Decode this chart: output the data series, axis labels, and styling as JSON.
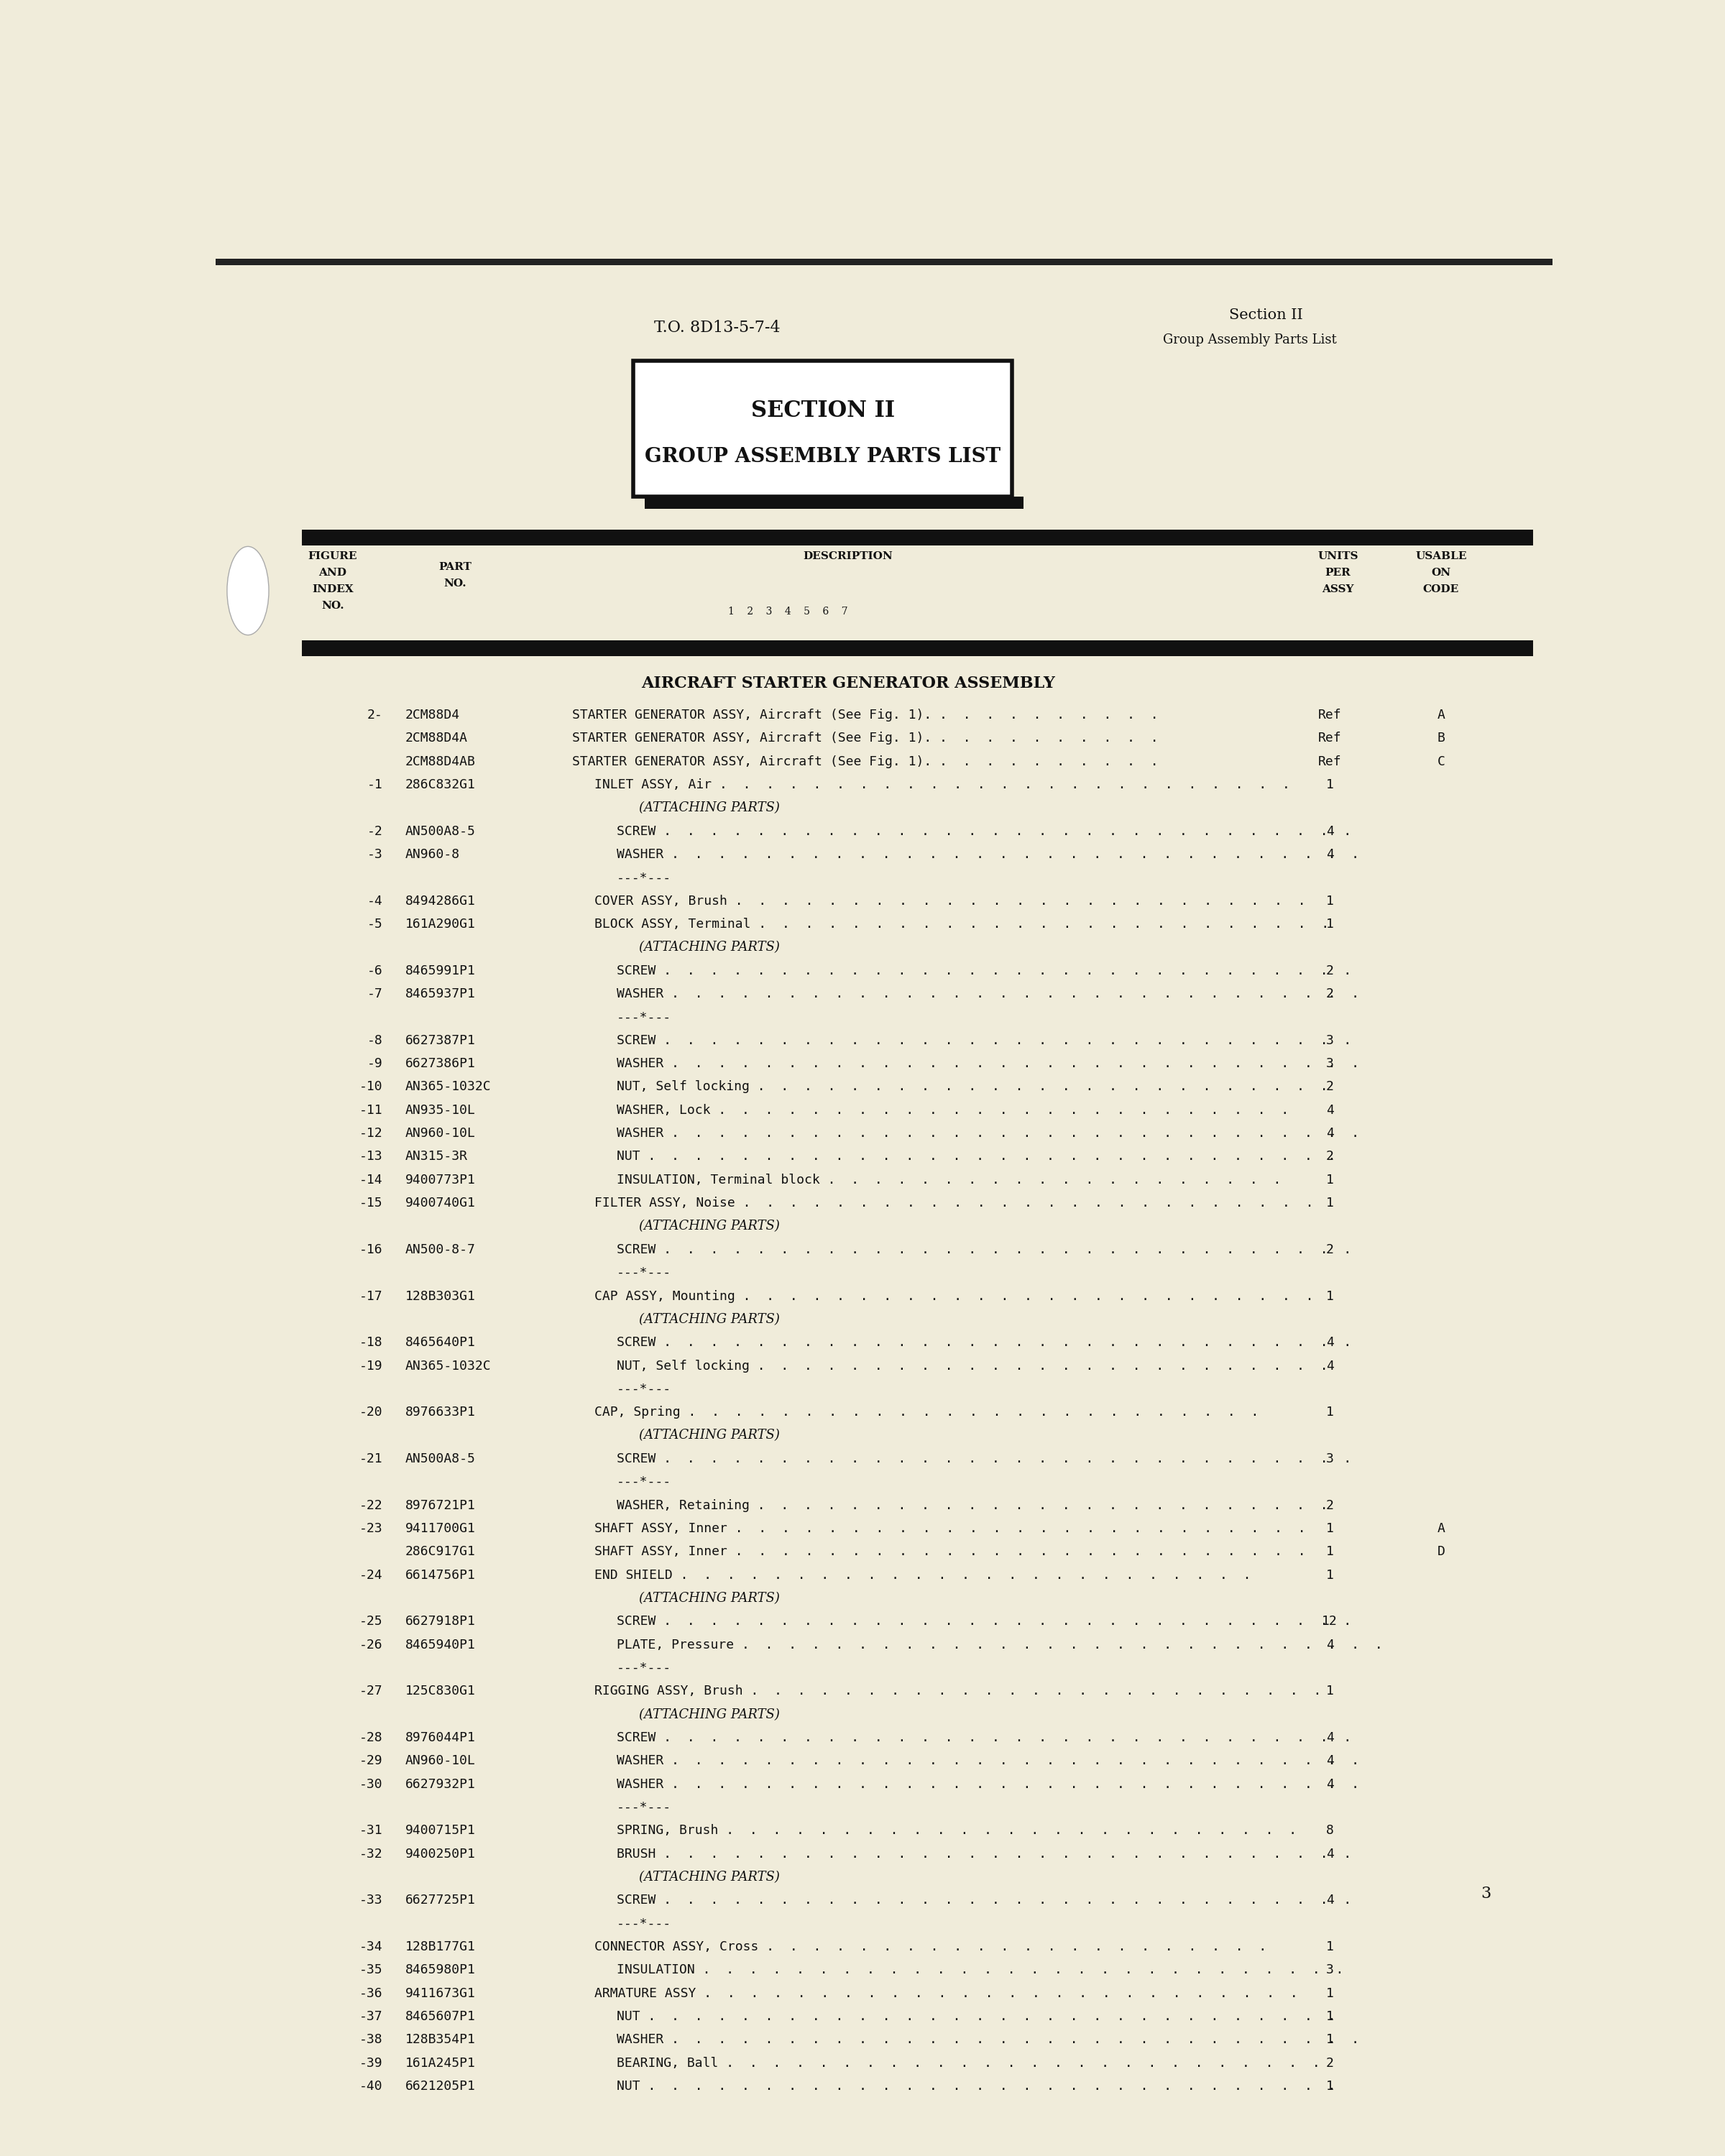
{
  "bg_color": "#f0ecda",
  "text_color": "#111111",
  "header_left": "T.O. 8D13-5-7-4",
  "header_right_line1": "Section II",
  "header_right_line2": "Group Assembly Parts List",
  "section_box_line1": "SECTION II",
  "section_box_line2": "GROUP ASSEMBLY PARTS LIST",
  "section_title": "AIRCRAFT STARTER GENERATOR ASSEMBLY",
  "page_number": "3",
  "rows": [
    {
      "fig": "2-",
      "part": "2CM88D4",
      "indent": 0,
      "desc": "STARTER GENERATOR ASSY, Aircraft (See Fig. 1).",
      "dots": 10,
      "units": "Ref",
      "code": "A"
    },
    {
      "fig": "",
      "part": "2CM88D4A",
      "indent": 0,
      "desc": "STARTER GENERATOR ASSY, Aircraft (See Fig. 1).",
      "dots": 10,
      "units": "Ref",
      "code": "B"
    },
    {
      "fig": "",
      "part": "2CM88D4AB",
      "indent": 0,
      "desc": "STARTER GENERATOR ASSY, Aircraft (See Fig. 1).",
      "dots": 10,
      "units": "Ref",
      "code": "C"
    },
    {
      "fig": "-1",
      "part": "286C832G1",
      "indent": 1,
      "desc": "INLET ASSY, Air",
      "dots": 25,
      "units": "1",
      "code": ""
    },
    {
      "fig": "",
      "part": "",
      "indent": 2,
      "desc": "(ATTACHING PARTS)",
      "dots": 0,
      "units": "",
      "code": ""
    },
    {
      "fig": "-2",
      "part": "AN500A8-5",
      "indent": 2,
      "desc": "SCREW",
      "dots": 30,
      "units": "4",
      "code": ""
    },
    {
      "fig": "-3",
      "part": "AN960-8",
      "indent": 2,
      "desc": "WASHER",
      "dots": 30,
      "units": "4",
      "code": ""
    },
    {
      "fig": "",
      "part": "",
      "indent": 0,
      "desc": "---*---",
      "dots": 0,
      "units": "",
      "code": ""
    },
    {
      "fig": "-4",
      "part": "8494286G1",
      "indent": 1,
      "desc": "COVER ASSY, Brush",
      "dots": 25,
      "units": "1",
      "code": ""
    },
    {
      "fig": "-5",
      "part": "161A290G1",
      "indent": 1,
      "desc": "BLOCK ASSY, Terminal",
      "dots": 25,
      "units": "1",
      "code": ""
    },
    {
      "fig": "",
      "part": "",
      "indent": 2,
      "desc": "(ATTACHING PARTS)",
      "dots": 0,
      "units": "",
      "code": ""
    },
    {
      "fig": "-6",
      "part": "8465991P1",
      "indent": 2,
      "desc": "SCREW",
      "dots": 30,
      "units": "2",
      "code": ""
    },
    {
      "fig": "-7",
      "part": "8465937P1",
      "indent": 2,
      "desc": "WASHER",
      "dots": 30,
      "units": "2",
      "code": ""
    },
    {
      "fig": "",
      "part": "",
      "indent": 0,
      "desc": "---*---",
      "dots": 0,
      "units": "",
      "code": ""
    },
    {
      "fig": "-8",
      "part": "6627387P1",
      "indent": 2,
      "desc": "SCREW",
      "dots": 30,
      "units": "3",
      "code": ""
    },
    {
      "fig": "-9",
      "part": "6627386P1",
      "indent": 2,
      "desc": "WASHER",
      "dots": 30,
      "units": "3",
      "code": ""
    },
    {
      "fig": "-10",
      "part": "AN365-1032C",
      "indent": 2,
      "desc": "NUT, Self locking",
      "dots": 25,
      "units": "2",
      "code": ""
    },
    {
      "fig": "-11",
      "part": "AN935-10L",
      "indent": 2,
      "desc": "WASHER, Lock",
      "dots": 25,
      "units": "4",
      "code": ""
    },
    {
      "fig": "-12",
      "part": "AN960-10L",
      "indent": 2,
      "desc": "WASHER",
      "dots": 30,
      "units": "4",
      "code": ""
    },
    {
      "fig": "-13",
      "part": "AN315-3R",
      "indent": 2,
      "desc": "NUT",
      "dots": 30,
      "units": "2",
      "code": ""
    },
    {
      "fig": "-14",
      "part": "9400773P1",
      "indent": 2,
      "desc": "INSULATION, Terminal block",
      "dots": 20,
      "units": "1",
      "code": ""
    },
    {
      "fig": "-15",
      "part": "9400740G1",
      "indent": 1,
      "desc": "FILTER ASSY, Noise",
      "dots": 25,
      "units": "1",
      "code": ""
    },
    {
      "fig": "",
      "part": "",
      "indent": 2,
      "desc": "(ATTACHING PARTS)",
      "dots": 0,
      "units": "",
      "code": ""
    },
    {
      "fig": "-16",
      "part": "AN500-8-7",
      "indent": 2,
      "desc": "SCREW",
      "dots": 30,
      "units": "2",
      "code": ""
    },
    {
      "fig": "",
      "part": "",
      "indent": 0,
      "desc": "---*---",
      "dots": 0,
      "units": "",
      "code": ""
    },
    {
      "fig": "-17",
      "part": "128B303G1",
      "indent": 1,
      "desc": "CAP ASSY, Mounting",
      "dots": 25,
      "units": "1",
      "code": ""
    },
    {
      "fig": "",
      "part": "",
      "indent": 2,
      "desc": "(ATTACHING PARTS)",
      "dots": 0,
      "units": "",
      "code": ""
    },
    {
      "fig": "-18",
      "part": "8465640P1",
      "indent": 2,
      "desc": "SCREW",
      "dots": 30,
      "units": "4",
      "code": ""
    },
    {
      "fig": "-19",
      "part": "AN365-1032C",
      "indent": 2,
      "desc": "NUT, Self locking",
      "dots": 25,
      "units": "4",
      "code": ""
    },
    {
      "fig": "",
      "part": "",
      "indent": 0,
      "desc": "---*---",
      "dots": 0,
      "units": "",
      "code": ""
    },
    {
      "fig": "-20",
      "part": "8976633P1",
      "indent": 1,
      "desc": "CAP, Spring",
      "dots": 25,
      "units": "1",
      "code": ""
    },
    {
      "fig": "",
      "part": "",
      "indent": 2,
      "desc": "(ATTACHING PARTS)",
      "dots": 0,
      "units": "",
      "code": ""
    },
    {
      "fig": "-21",
      "part": "AN500A8-5",
      "indent": 2,
      "desc": "SCREW",
      "dots": 30,
      "units": "3",
      "code": ""
    },
    {
      "fig": "",
      "part": "",
      "indent": 0,
      "desc": "---*---",
      "dots": 0,
      "units": "",
      "code": ""
    },
    {
      "fig": "-22",
      "part": "8976721P1",
      "indent": 2,
      "desc": "WASHER, Retaining",
      "dots": 25,
      "units": "2",
      "code": ""
    },
    {
      "fig": "-23",
      "part": "9411700G1",
      "indent": 1,
      "desc": "SHAFT ASSY, Inner",
      "dots": 25,
      "units": "1",
      "code": "A"
    },
    {
      "fig": "",
      "part": "286C917G1",
      "indent": 1,
      "desc": "SHAFT ASSY, Inner",
      "dots": 25,
      "units": "1",
      "code": "D"
    },
    {
      "fig": "-24",
      "part": "6614756P1",
      "indent": 1,
      "desc": "END SHIELD",
      "dots": 25,
      "units": "1",
      "code": ""
    },
    {
      "fig": "",
      "part": "",
      "indent": 2,
      "desc": "(ATTACHING PARTS)",
      "dots": 0,
      "units": "",
      "code": ""
    },
    {
      "fig": "-25",
      "part": "6627918P1",
      "indent": 2,
      "desc": "SCREW",
      "dots": 30,
      "units": "12",
      "code": ""
    },
    {
      "fig": "-26",
      "part": "8465940P1",
      "indent": 2,
      "desc": "PLATE, Pressure",
      "dots": 28,
      "units": "4",
      "code": ""
    },
    {
      "fig": "",
      "part": "",
      "indent": 0,
      "desc": "---*---",
      "dots": 0,
      "units": "",
      "code": ""
    },
    {
      "fig": "-27",
      "part": "125C830G1",
      "indent": 1,
      "desc": "RIGGING ASSY, Brush",
      "dots": 25,
      "units": "1",
      "code": ""
    },
    {
      "fig": "",
      "part": "",
      "indent": 2,
      "desc": "(ATTACHING PARTS)",
      "dots": 0,
      "units": "",
      "code": ""
    },
    {
      "fig": "-28",
      "part": "8976044P1",
      "indent": 2,
      "desc": "SCREW",
      "dots": 30,
      "units": "4",
      "code": ""
    },
    {
      "fig": "-29",
      "part": "AN960-10L",
      "indent": 2,
      "desc": "WASHER",
      "dots": 30,
      "units": "4",
      "code": ""
    },
    {
      "fig": "-30",
      "part": "6627932P1",
      "indent": 2,
      "desc": "WASHER",
      "dots": 30,
      "units": "4",
      "code": ""
    },
    {
      "fig": "",
      "part": "",
      "indent": 0,
      "desc": "---*---",
      "dots": 0,
      "units": "",
      "code": ""
    },
    {
      "fig": "-31",
      "part": "9400715P1",
      "indent": 2,
      "desc": "SPRING, Brush",
      "dots": 25,
      "units": "8",
      "code": ""
    },
    {
      "fig": "-32",
      "part": "9400250P1",
      "indent": 2,
      "desc": "BRUSH",
      "dots": 30,
      "units": "4",
      "code": ""
    },
    {
      "fig": "",
      "part": "",
      "indent": 2,
      "desc": "(ATTACHING PARTS)",
      "dots": 0,
      "units": "",
      "code": ""
    },
    {
      "fig": "-33",
      "part": "6627725P1",
      "indent": 2,
      "desc": "SCREW",
      "dots": 30,
      "units": "4",
      "code": ""
    },
    {
      "fig": "",
      "part": "",
      "indent": 0,
      "desc": "---*---",
      "dots": 0,
      "units": "",
      "code": ""
    },
    {
      "fig": "-34",
      "part": "128B177G1",
      "indent": 1,
      "desc": "CONNECTOR ASSY, Cross",
      "dots": 22,
      "units": "1",
      "code": ""
    },
    {
      "fig": "-35",
      "part": "8465980P1",
      "indent": 2,
      "desc": "INSULATION",
      "dots": 28,
      "units": "3",
      "code": ""
    },
    {
      "fig": "-36",
      "part": "9411673G1",
      "indent": 1,
      "desc": "ARMATURE ASSY",
      "dots": 26,
      "units": "1",
      "code": ""
    },
    {
      "fig": "-37",
      "part": "8465607P1",
      "indent": 2,
      "desc": "NUT",
      "dots": 30,
      "units": "1",
      "code": ""
    },
    {
      "fig": "-38",
      "part": "128B354P1",
      "indent": 2,
      "desc": "WASHER",
      "dots": 30,
      "units": "1",
      "code": ""
    },
    {
      "fig": "-39",
      "part": "161A245P1",
      "indent": 2,
      "desc": "BEARING, Ball",
      "dots": 26,
      "units": "2",
      "code": ""
    },
    {
      "fig": "-40",
      "part": "6621205P1",
      "indent": 2,
      "desc": "NUT",
      "dots": 30,
      "units": "1",
      "code": ""
    }
  ]
}
